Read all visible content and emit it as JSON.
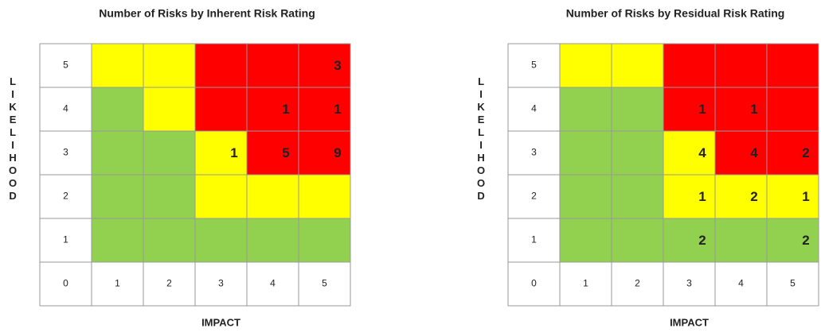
{
  "chart_data": [
    {
      "type": "heatmap",
      "title": "Number of Risks by Inherent Risk Rating",
      "ylabel": "LIKELIHOOD",
      "xlabel": "IMPACT",
      "yticks": [
        5,
        4,
        3,
        2,
        1
      ],
      "xticks": [
        0,
        1,
        2,
        3,
        4,
        5
      ],
      "colors": [
        [
          "#ffff00",
          "#ffff00",
          "#ff0000",
          "#ff0000",
          "#ff0000"
        ],
        [
          "#92d050",
          "#ffff00",
          "#ff0000",
          "#ff0000",
          "#ff0000"
        ],
        [
          "#92d050",
          "#92d050",
          "#ffff00",
          "#ff0000",
          "#ff0000"
        ],
        [
          "#92d050",
          "#92d050",
          "#ffff00",
          "#ffff00",
          "#ffff00"
        ],
        [
          "#92d050",
          "#92d050",
          "#92d050",
          "#92d050",
          "#92d050"
        ]
      ],
      "values": [
        [
          null,
          null,
          null,
          null,
          3
        ],
        [
          null,
          null,
          null,
          1,
          1
        ],
        [
          null,
          null,
          1,
          5,
          9
        ],
        [
          null,
          null,
          null,
          null,
          null
        ],
        [
          null,
          null,
          null,
          null,
          null
        ]
      ]
    },
    {
      "type": "heatmap",
      "title": "Number of Risks by Residual Risk Rating",
      "ylabel": "LIKELIHOOD",
      "xlabel": "IMPACT",
      "yticks": [
        5,
        4,
        3,
        2,
        1
      ],
      "xticks": [
        0,
        1,
        2,
        3,
        4,
        5
      ],
      "colors": [
        [
          "#ffff00",
          "#ffff00",
          "#ff0000",
          "#ff0000",
          "#ff0000"
        ],
        [
          "#92d050",
          "#92d050",
          "#ff0000",
          "#ff0000",
          "#ff0000"
        ],
        [
          "#92d050",
          "#92d050",
          "#ffff00",
          "#ff0000",
          "#ff0000"
        ],
        [
          "#92d050",
          "#92d050",
          "#ffff00",
          "#ffff00",
          "#ffff00"
        ],
        [
          "#92d050",
          "#92d050",
          "#92d050",
          "#92d050",
          "#92d050"
        ]
      ],
      "values": [
        [
          null,
          null,
          null,
          null,
          null
        ],
        [
          null,
          null,
          1,
          1,
          null
        ],
        [
          null,
          null,
          4,
          4,
          2
        ],
        [
          null,
          null,
          1,
          2,
          1
        ],
        [
          null,
          null,
          2,
          null,
          2
        ]
      ]
    }
  ]
}
